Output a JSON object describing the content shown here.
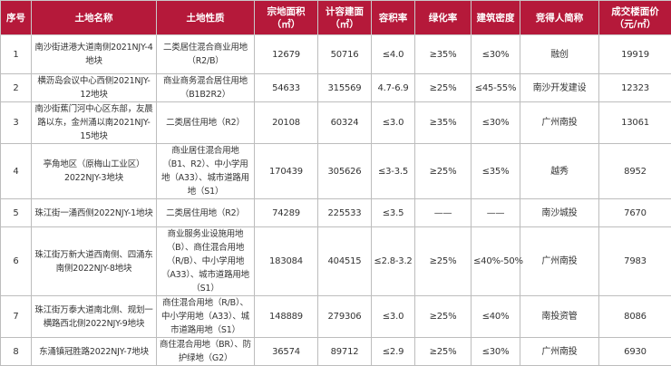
{
  "headers": [
    "序号",
    "土地名称",
    "土地性质",
    "宗地面积（㎡）",
    "计容建面（㎡）",
    "容积率",
    "绿化率",
    "建筑密度",
    "竞得人简称",
    "成交楼面价（元/㎡）"
  ],
  "rows": [
    [
      "1",
      "南沙街进港大道南侧2021NJY-4地块",
      "二类居住混合商业用地（R2/B）",
      "12679",
      "50716",
      "≤4.0",
      "≥35%",
      "≤30%",
      "融创",
      "19919"
    ],
    [
      "2",
      "横沥岛会议中心西侧2021NJY-12地块",
      "商业商务混合居住用地（B1B2R2）",
      "54633",
      "315569",
      "4.7-6.9",
      "≥25%",
      "≤45-55%",
      "南沙开发建设",
      "12323"
    ],
    [
      "3",
      "南沙街蕉门河中心区东部，友晨路以东，金州涌以南2021NJY-15地块",
      "二类居住用地（R2）",
      "20108",
      "60324",
      "≤3.0",
      "≥35%",
      "≤30%",
      "广州南投",
      "13061"
    ],
    [
      "4",
      "亭角地区（原梅山工业区）2022NJY-3地块",
      "商业居住混合用地（B1、R2）、中小学用地（A33）、城市道路用地（S1）",
      "170439",
      "305626",
      "≤3-3.5",
      "≥25%",
      "≤35%",
      "越秀",
      "8952"
    ],
    [
      "5",
      "珠江街一涌西侧2022NJY-1地块",
      "二类居住用地（R2）",
      "74289",
      "225533",
      "≤3.5",
      "——",
      "——",
      "南沙城投",
      "7670"
    ],
    [
      "6",
      "珠江街万新大道西南侧、四涌东南侧2022NJY-8地块",
      "商业服务业设施用地（B）、商住混合用地（R/B）、中小学用地（A33）、城市道路用地（S1）",
      "183084",
      "404515",
      "≤2.8-3.2",
      "≥25%",
      "≤40%-50%",
      "广州南投",
      "7983"
    ],
    [
      "7",
      "珠江街万泰大道南北侧、规划一横路西北侧2022NJY-9地块",
      "商住混合用地（R/B）、中小学用地（A33）、城市道路用地（S1）",
      "148889",
      "279306",
      "≤3.0",
      "≥25%",
      "≤40%",
      "南投资管",
      "8086"
    ],
    [
      "8",
      "东涌镇冠胜路2022NJY-7地块",
      "商住混合用地（BR）、防护绿地（G2）",
      "36574",
      "89712",
      "≤2.9",
      "≥25%",
      "≤30%",
      "广州南投",
      "6930"
    ]
  ]
}
